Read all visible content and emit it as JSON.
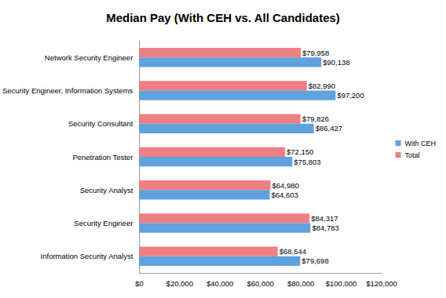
{
  "chart_data": {
    "type": "bar",
    "title": "Median Pay (With CEH vs. All Candidates)",
    "orientation": "horizontal",
    "categories": [
      "Network Security Engineer",
      "Security Engineer, Information Systems",
      "Security Consultant",
      "Penetration Tester",
      "Security Analyst",
      "Security Engineer",
      "Information Security Analyst"
    ],
    "series": [
      {
        "name": "With CEH",
        "color": "#5fa2dd",
        "values": [
          90138,
          97200,
          86427,
          75803,
          64603,
          84783,
          79698
        ],
        "value_labels": [
          "$90,138",
          "$97,200",
          "$86,427",
          "$75,803",
          "$64,603",
          "$84,783",
          "$79,698"
        ]
      },
      {
        "name": "Total",
        "color": "#ee7f82",
        "values": [
          79958,
          82990,
          79826,
          72150,
          64980,
          84317,
          68544
        ],
        "value_labels": [
          "$79,958",
          "$82,990",
          "$79,826",
          "$72,150",
          "$64,980",
          "$84,317",
          "$68,544"
        ]
      }
    ],
    "xlim": [
      0,
      120000
    ],
    "xticks": [
      {
        "value": 0,
        "label": "$0"
      },
      {
        "value": 20000,
        "label": "$20,000"
      },
      {
        "value": 40000,
        "label": "$40,000"
      },
      {
        "value": 60000,
        "label": "$60,000"
      },
      {
        "value": 80000,
        "label": "$80,000"
      },
      {
        "value": 100000,
        "label": "$100,000"
      },
      {
        "value": 120000,
        "label": "$120,000"
      }
    ],
    "grid": false,
    "legend": "right",
    "data_labels": true
  }
}
